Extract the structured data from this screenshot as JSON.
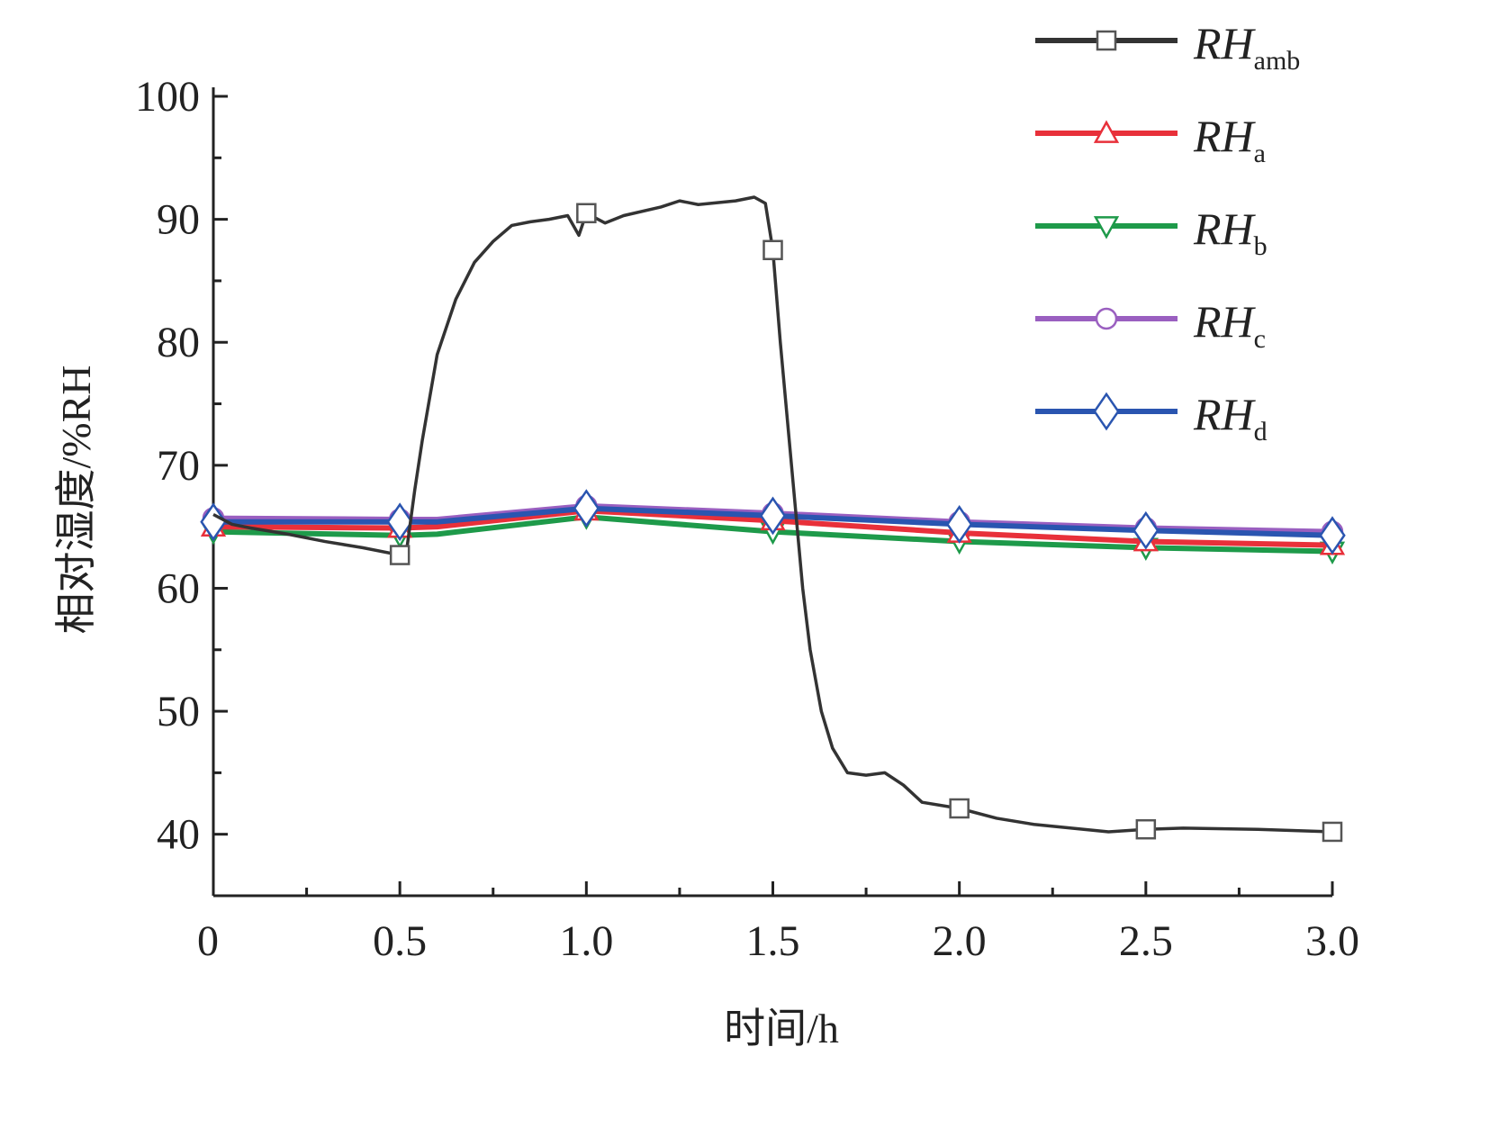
{
  "chart_data": {
    "type": "line",
    "title": "",
    "xlabel": "时间/h",
    "ylabel": "相对湿度/%RH",
    "xlim": [
      0,
      3.0
    ],
    "ylim": [
      35,
      100
    ],
    "xticks": [
      0,
      0.5,
      1.0,
      1.5,
      2.0,
      2.5,
      3.0
    ],
    "xtick_labels": [
      "0",
      "0.5",
      "1.0",
      "1.5",
      "2.0",
      "2.5",
      "3.0"
    ],
    "yticks": [
      40,
      50,
      60,
      70,
      80,
      90,
      100
    ],
    "ytick_labels": [
      "40",
      "50",
      "60",
      "70",
      "80",
      "90",
      "100"
    ],
    "grid": false,
    "legend_position": "top-right",
    "series": [
      {
        "name": "RHamb",
        "label_main": "RH",
        "label_sub": "amb",
        "color": "#333333",
        "marker": "square",
        "x": [
          0,
          0.05,
          0.1,
          0.2,
          0.3,
          0.4,
          0.5,
          0.52,
          0.54,
          0.56,
          0.6,
          0.65,
          0.7,
          0.75,
          0.8,
          0.85,
          0.9,
          0.95,
          0.98,
          1.0,
          1.05,
          1.1,
          1.2,
          1.25,
          1.3,
          1.4,
          1.45,
          1.48,
          1.5,
          1.52,
          1.55,
          1.58,
          1.6,
          1.63,
          1.66,
          1.7,
          1.75,
          1.8,
          1.85,
          1.9,
          2.0,
          2.1,
          2.2,
          2.3,
          2.4,
          2.5,
          2.6,
          2.8,
          3.0
        ],
        "y": [
          66,
          65.2,
          64.9,
          64.4,
          63.8,
          63.3,
          62.7,
          63.5,
          68,
          72,
          79,
          83.5,
          86.5,
          88.2,
          89.5,
          89.8,
          90,
          90.3,
          88.7,
          90.5,
          89.7,
          90.3,
          91,
          91.5,
          91.2,
          91.5,
          91.8,
          91.3,
          87.5,
          80,
          70,
          60,
          55,
          50,
          47,
          45,
          44.8,
          45,
          44,
          42.6,
          42.1,
          41.3,
          40.8,
          40.5,
          40.2,
          40.4,
          40.5,
          40.4,
          40.2
        ],
        "markers_x": [
          0.5,
          1.0,
          1.5,
          2.0,
          2.5,
          3.0
        ]
      },
      {
        "name": "RHa",
        "label_main": "RH",
        "label_sub": "a",
        "color": "#e8303a",
        "marker": "triangle-up",
        "x": [
          0,
          0.5,
          0.6,
          1.0,
          1.5,
          2.0,
          2.5,
          3.0
        ],
        "y": [
          65.0,
          64.9,
          65.0,
          66.3,
          65.5,
          64.5,
          63.8,
          63.5
        ],
        "markers_x": [
          0,
          0.5,
          1.0,
          1.5,
          2.0,
          2.5,
          3.0
        ]
      },
      {
        "name": "RHb",
        "label_main": "RH",
        "label_sub": "b",
        "color": "#1e9a4a",
        "marker": "triangle-down",
        "x": [
          0,
          0.5,
          0.6,
          1.0,
          1.5,
          2.0,
          2.5,
          3.0
        ],
        "y": [
          64.6,
          64.3,
          64.4,
          65.8,
          64.6,
          63.8,
          63.3,
          63.0
        ],
        "markers_x": [
          0,
          0.5,
          1.0,
          1.5,
          2.0,
          2.5,
          3.0
        ]
      },
      {
        "name": "RHc",
        "label_main": "RH",
        "label_sub": "c",
        "color": "#9a5fc0",
        "marker": "circle",
        "x": [
          0,
          0.5,
          0.6,
          1.0,
          1.5,
          2.0,
          2.5,
          3.0
        ],
        "y": [
          65.7,
          65.6,
          65.6,
          66.7,
          66.1,
          65.4,
          64.9,
          64.6
        ],
        "markers_x": [
          0,
          0.5,
          1.0,
          1.5,
          2.0,
          2.5,
          3.0
        ]
      },
      {
        "name": "RHd",
        "label_main": "RH",
        "label_sub": "d",
        "color": "#2a55b0",
        "marker": "diamond",
        "x": [
          0,
          0.5,
          0.6,
          1.0,
          1.5,
          2.0,
          2.5,
          3.0
        ],
        "y": [
          65.4,
          65.4,
          65.4,
          66.5,
          65.9,
          65.2,
          64.7,
          64.3
        ],
        "markers_x": [
          0,
          0.5,
          1.0,
          1.5,
          2.0,
          2.5,
          3.0
        ]
      }
    ]
  }
}
